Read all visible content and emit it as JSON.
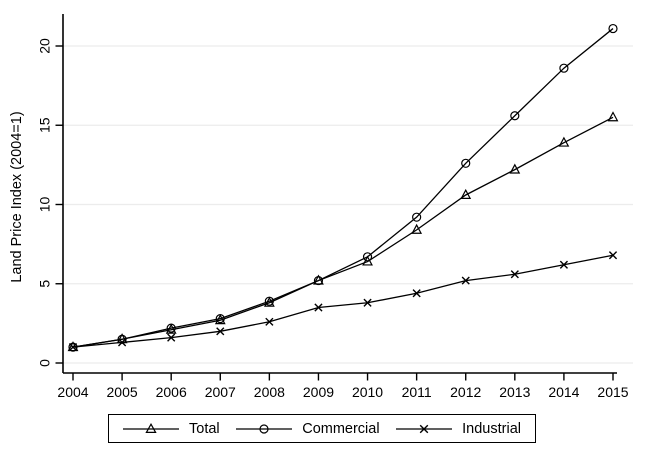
{
  "figure": {
    "background": "#ffffff",
    "text_color": "#000000",
    "grid_color": "#ececec",
    "axis_color": "#000000"
  },
  "chart_data": {
    "type": "line",
    "title": "",
    "xlabel": "",
    "ylabel": "Land Price Index (2004=1)",
    "x": [
      2004,
      2005,
      2006,
      2007,
      2008,
      2009,
      2010,
      2011,
      2012,
      2013,
      2014,
      2015
    ],
    "series": [
      {
        "name": "Total",
        "marker": "triangle",
        "color": "#000000",
        "values": [
          1.0,
          1.5,
          2.1,
          2.7,
          3.8,
          5.2,
          6.4,
          8.4,
          10.6,
          12.2,
          13.9,
          15.5
        ]
      },
      {
        "name": "Commercial",
        "marker": "circle",
        "color": "#000000",
        "values": [
          1.0,
          1.5,
          2.2,
          2.8,
          3.9,
          5.2,
          6.7,
          9.2,
          12.6,
          15.6,
          18.6,
          21.1
        ]
      },
      {
        "name": "Industrial",
        "marker": "x",
        "color": "#000000",
        "values": [
          1.0,
          1.3,
          1.6,
          2.0,
          2.6,
          3.5,
          3.8,
          4.4,
          5.2,
          5.6,
          6.2,
          6.8
        ]
      }
    ],
    "ylim": [
      0,
      22
    ],
    "yticks": [
      0,
      5,
      10,
      15,
      20
    ],
    "grid": "horizontal",
    "legend_position": "bottom"
  }
}
